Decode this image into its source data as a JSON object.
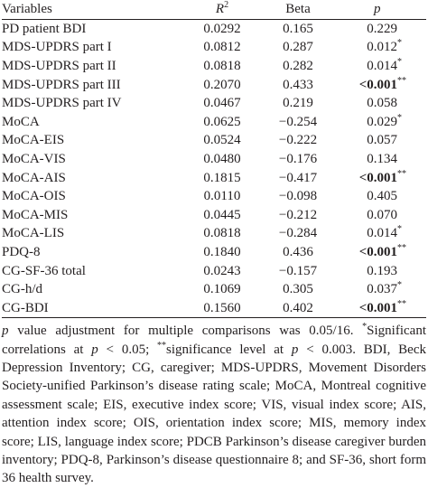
{
  "table": {
    "header": [
      {
        "text": "Variables"
      },
      {
        "text": "R",
        "superscript": "2",
        "italic": true
      },
      {
        "text": "Beta"
      },
      {
        "text": "p",
        "italic": true
      }
    ],
    "rows": [
      [
        "PD patient BDI",
        "0.0292",
        "0.165",
        {
          "value": "0.229"
        }
      ],
      [
        "MDS-UPDRS part I",
        "0.0812",
        "0.287",
        {
          "value": "0.012",
          "mark": "*"
        }
      ],
      [
        "MDS-UPDRS part II",
        "0.0818",
        "0.282",
        {
          "value": "0.014",
          "mark": "*"
        }
      ],
      [
        "MDS-UPDRS part III",
        "0.2070",
        "0.433",
        {
          "value": "<0.001",
          "mark": "**",
          "bold": true
        }
      ],
      [
        "MDS-UPDRS part IV",
        "0.0467",
        "0.219",
        {
          "value": "0.058"
        }
      ],
      [
        "MoCA",
        "0.0625",
        "−0.254",
        {
          "value": "0.029",
          "mark": "*"
        }
      ],
      [
        "MoCA-EIS",
        "0.0524",
        "−0.222",
        {
          "value": "0.057"
        }
      ],
      [
        "MoCA-VIS",
        "0.0480",
        "−0.176",
        {
          "value": "0.134"
        }
      ],
      [
        "MoCA-AIS",
        "0.1815",
        "−0.417",
        {
          "value": "<0.001",
          "mark": "**",
          "bold": true
        }
      ],
      [
        "MoCA-OIS",
        "0.0110",
        "−0.098",
        {
          "value": "0.405"
        }
      ],
      [
        "MoCA-MIS",
        "0.0445",
        "−0.212",
        {
          "value": "0.070"
        }
      ],
      [
        "MoCA-LIS",
        "0.0818",
        "−0.284",
        {
          "value": "0.014",
          "mark": "*"
        }
      ],
      [
        "PDQ-8",
        "0.1840",
        "0.436",
        {
          "value": "<0.001",
          "mark": "**",
          "bold": true
        }
      ],
      [
        "CG-SF-36 total",
        "0.0243",
        "−0.157",
        {
          "value": "0.193"
        }
      ],
      [
        "CG-h/d",
        "0.1069",
        "0.305",
        {
          "value": "0.037",
          "mark": "*"
        }
      ],
      [
        "CG-BDI",
        "0.1560",
        "0.402",
        {
          "value": "<0.001",
          "mark": "**",
          "bold": true
        }
      ]
    ]
  },
  "footnote": [
    {
      "text": "p",
      "italic": true
    },
    {
      "text": " value adjustment for multiple comparisons was 0.05/16. "
    },
    {
      "text": "*",
      "superscript": true
    },
    {
      "text": "Significant correlations at "
    },
    {
      "text": "p",
      "italic": true
    },
    {
      "text": " < 0.05; "
    },
    {
      "text": "**",
      "superscript": true
    },
    {
      "text": "significance level at "
    },
    {
      "text": "p",
      "italic": true
    },
    {
      "text": " < 0.003. BDI, Beck Depression Inventory; CG, caregiver; MDS-UPDRS, Movement Disorders Society-unified Parkinson’s disease rating scale; MoCA, Montreal cognitive assessment scale; EIS, executive index score; VIS, visual index score; AIS, attention index score; OIS, orientation index score; MIS, memory index score; LIS, language index score; PDCB Parkinson’s disease caregiver burden inventory; PDQ-8, Parkinson’s disease questionnaire 8; and SF-36, short form 36 health survey."
    }
  ]
}
